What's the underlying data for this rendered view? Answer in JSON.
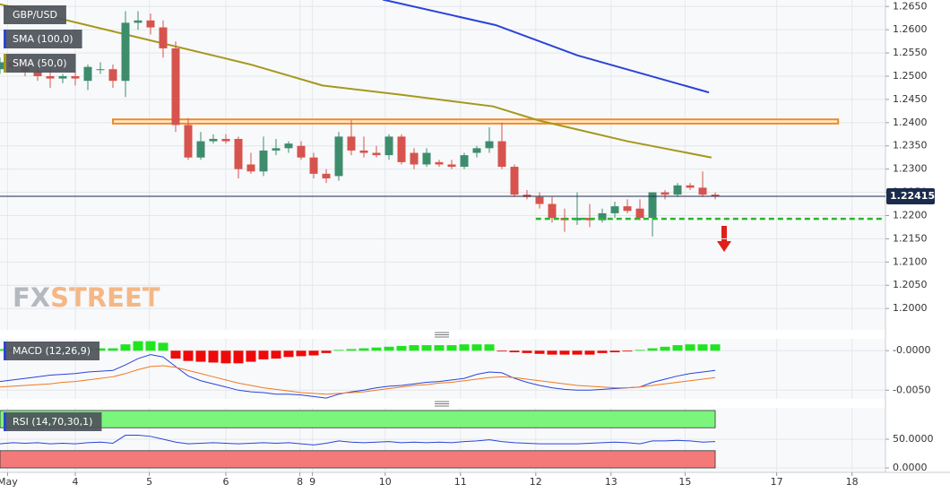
{
  "logo": [
    "FX",
    "STREET"
  ],
  "chart_data": [
    {
      "type": "candlestick",
      "title": "GBP/USD",
      "xlim": [
        0,
        70.57
      ],
      "ylim": [
        1.1954,
        1.2664
      ],
      "yticks": [
        {
          "value": 1.2,
          "label": "1.2000"
        },
        {
          "value": 1.205,
          "label": "1.2050"
        },
        {
          "value": 1.21,
          "label": "1.2100"
        },
        {
          "value": 1.215,
          "label": "1.2150"
        },
        {
          "value": 1.22,
          "label": "1.2200"
        },
        {
          "value": 1.225,
          "label": "1.2250"
        },
        {
          "value": 1.23,
          "label": "1.2300"
        },
        {
          "value": 1.235,
          "label": "1.2350"
        },
        {
          "value": 1.24,
          "label": "1.2400"
        },
        {
          "value": 1.245,
          "label": "1.2450"
        },
        {
          "value": 1.25,
          "label": "1.2500"
        },
        {
          "value": 1.255,
          "label": "1.2550"
        },
        {
          "value": 1.26,
          "label": "1.2600"
        },
        {
          "value": 1.265,
          "label": "1.2650"
        }
      ],
      "grid": true,
      "up_color": "#3d8d6d",
      "down_color": "#d6544d",
      "candles": {
        "open": [
          1.2515,
          1.253,
          1.252,
          1.251,
          1.25,
          1.2495,
          1.25,
          1.249,
          1.2515,
          1.2515,
          1.249,
          1.2615,
          1.262,
          1.2605,
          1.256,
          1.2395,
          1.2325,
          1.236,
          1.2365,
          1.2365,
          1.231,
          1.2295,
          1.234,
          1.2345,
          1.235,
          1.2325,
          1.229,
          1.2285,
          1.237,
          1.234,
          1.2335,
          1.233,
          1.237,
          1.2335,
          1.231,
          1.2315,
          1.231,
          1.2305,
          1.2335,
          1.2345,
          1.236,
          1.2305,
          1.2245,
          1.224,
          1.2225,
          1.2195,
          1.219,
          1.2195,
          1.219,
          1.2205,
          1.222,
          1.2215,
          1.2195,
          1.225,
          1.2245,
          1.2265,
          1.226,
          1.2245
        ],
        "high": [
          1.254,
          1.2545,
          1.254,
          1.2525,
          1.2515,
          1.2505,
          1.251,
          1.2525,
          1.253,
          1.2525,
          1.264,
          1.264,
          1.2635,
          1.262,
          1.2575,
          1.241,
          1.238,
          1.2375,
          1.2375,
          1.237,
          1.2335,
          1.237,
          1.2365,
          1.236,
          1.236,
          1.2335,
          1.23,
          1.238,
          1.2405,
          1.237,
          1.235,
          1.2375,
          1.2375,
          1.2345,
          1.2345,
          1.232,
          1.232,
          1.2335,
          1.235,
          1.239,
          1.24,
          1.231,
          1.2255,
          1.225,
          1.224,
          1.2215,
          1.225,
          1.2225,
          1.2215,
          1.223,
          1.2235,
          1.2235,
          1.225,
          1.2255,
          1.227,
          1.227,
          1.2295,
          1.225
        ],
        "low": [
          1.2505,
          1.2515,
          1.25,
          1.249,
          1.2475,
          1.2485,
          1.248,
          1.247,
          1.2505,
          1.2475,
          1.2455,
          1.26,
          1.259,
          1.254,
          1.238,
          1.232,
          1.232,
          1.2355,
          1.2355,
          1.228,
          1.229,
          1.2285,
          1.233,
          1.2335,
          1.232,
          1.228,
          1.227,
          1.2275,
          1.233,
          1.2325,
          1.2325,
          1.232,
          1.231,
          1.23,
          1.2305,
          1.2305,
          1.23,
          1.23,
          1.2325,
          1.2335,
          1.23,
          1.224,
          1.2235,
          1.2215,
          1.2185,
          1.2165,
          1.218,
          1.2175,
          1.2185,
          1.2195,
          1.2205,
          1.219,
          1.2155,
          1.2235,
          1.224,
          1.2255,
          1.224,
          1.2235
        ],
        "close": [
          1.253,
          1.252,
          1.251,
          1.25,
          1.2495,
          1.25,
          1.2495,
          1.252,
          1.2515,
          1.249,
          1.2615,
          1.262,
          1.2605,
          1.256,
          1.2395,
          1.2325,
          1.236,
          1.2365,
          1.236,
          1.23,
          1.2295,
          1.234,
          1.2345,
          1.2355,
          1.2325,
          1.229,
          1.228,
          1.237,
          1.234,
          1.2335,
          1.233,
          1.237,
          1.2315,
          1.231,
          1.2335,
          1.231,
          1.2305,
          1.233,
          1.2345,
          1.236,
          1.2305,
          1.2245,
          1.224,
          1.2225,
          1.2195,
          1.219,
          1.2195,
          1.219,
          1.2205,
          1.222,
          1.221,
          1.2195,
          1.225,
          1.2245,
          1.2265,
          1.226,
          1.2245,
          1.22415
        ]
      },
      "series": [
        {
          "name": "SMA (100,0)",
          "color": "#2a44d8",
          "x": [
            30.5,
            39.5,
            46,
            56.5
          ],
          "values": [
            1.2665,
            1.261,
            1.2545,
            1.2465
          ]
        },
        {
          "name": "SMA (50,0)",
          "color": "#a6981c",
          "x": [
            0,
            10,
            20,
            25.7,
            32,
            39.3,
            42.9,
            50,
            56.7
          ],
          "values": [
            1.2655,
            1.259,
            1.2525,
            1.248,
            1.246,
            1.2435,
            1.2405,
            1.236,
            1.2325
          ]
        }
      ],
      "resistance": {
        "x": [
          9,
          66.8
        ],
        "y": [
          1.2398,
          1.2407
        ],
        "color": "#f08a24"
      },
      "support": {
        "x": [
          42.7,
          70.4
        ],
        "y": 1.2193,
        "color": "#2fb52f"
      },
      "last_price": 1.22415
    },
    {
      "type": "macd",
      "title": "MACD (12,26,9)",
      "xlim": [
        0,
        70.57
      ],
      "ylim": [
        -0.0061,
        0.0015
      ],
      "yticks": [
        {
          "value": 0,
          "label": "-0.0000"
        },
        {
          "value": -0.005,
          "label": "-0.0050"
        }
      ],
      "histogram": {
        "up_color": "#1fe51f",
        "down_color": "#ee0a0a",
        "values": [
          0.0002,
          0.0002,
          0.0002,
          0.0002,
          0.0002,
          0.0002,
          0.0002,
          0.0003,
          0.0003,
          0.0003,
          0.0008,
          0.0012,
          0.0012,
          0.001,
          -0.001,
          -0.0013,
          -0.0014,
          -0.0015,
          -0.0016,
          -0.0016,
          -0.0014,
          -0.0011,
          -0.001,
          -0.0008,
          -0.0007,
          -0.0006,
          -0.0003,
          0.0001,
          0.0002,
          0.0003,
          0.0004,
          0.0005,
          0.0006,
          0.0007,
          0.0007,
          0.0007,
          0.0007,
          0.0008,
          0.0008,
          0.0008,
          -0.0001,
          -0.0002,
          -0.0003,
          -0.0004,
          -0.0005,
          -0.0005,
          -0.0005,
          -0.0005,
          -0.0003,
          -0.0002,
          -0.0001,
          0.0001,
          0.0003,
          0.0005,
          0.0007,
          0.0008,
          0.0008,
          0.0008
        ]
      },
      "lines": [
        {
          "color": "#2a44d8",
          "values": [
            -0.0039,
            -0.0037,
            -0.0035,
            -0.0033,
            -0.0031,
            -0.003,
            -0.0029,
            -0.0027,
            -0.0026,
            -0.0025,
            -0.0018,
            -0.001,
            -0.0005,
            -0.0008,
            -0.002,
            -0.0032,
            -0.0038,
            -0.0042,
            -0.0046,
            -0.005,
            -0.0052,
            -0.0053,
            -0.0055,
            -0.0055,
            -0.0056,
            -0.0058,
            -0.006,
            -0.0055,
            -0.0052,
            -0.005,
            -0.0047,
            -0.0045,
            -0.0044,
            -0.0042,
            -0.004,
            -0.0039,
            -0.0037,
            -0.0035,
            -0.003,
            -0.0027,
            -0.0028,
            -0.0035,
            -0.004,
            -0.0044,
            -0.0047,
            -0.0049,
            -0.005,
            -0.005,
            -0.0049,
            -0.0048,
            -0.0047,
            -0.0046,
            -0.004,
            -0.0036,
            -0.0032,
            -0.0029,
            -0.0027,
            -0.0025
          ]
        },
        {
          "color": "#f07a22",
          "values": [
            -0.0046,
            -0.0045,
            -0.0044,
            -0.0043,
            -0.0042,
            -0.004,
            -0.0039,
            -0.0037,
            -0.0035,
            -0.0033,
            -0.0029,
            -0.0024,
            -0.002,
            -0.0019,
            -0.0021,
            -0.0025,
            -0.0029,
            -0.0033,
            -0.0037,
            -0.0041,
            -0.0044,
            -0.0047,
            -0.0049,
            -0.0051,
            -0.0053,
            -0.0054,
            -0.0055,
            -0.0054,
            -0.0053,
            -0.0052,
            -0.005,
            -0.0048,
            -0.0046,
            -0.0044,
            -0.0043,
            -0.0041,
            -0.004,
            -0.0038,
            -0.0036,
            -0.0034,
            -0.0033,
            -0.0034,
            -0.0036,
            -0.0038,
            -0.004,
            -0.0042,
            -0.0044,
            -0.0045,
            -0.0046,
            -0.0047,
            -0.0047,
            -0.0046,
            -0.0044,
            -0.0042,
            -0.004,
            -0.0038,
            -0.0036,
            -0.0034
          ]
        }
      ]
    },
    {
      "type": "rsi",
      "title": "RSI (14,70,30,1)",
      "xlim": [
        0,
        70.57
      ],
      "ylim": [
        -7.8,
        104.7
      ],
      "yticks": [
        {
          "value": 50,
          "label": "50.0000"
        },
        {
          "value": 0,
          "label": "0.0000"
        }
      ],
      "bands": [
        {
          "from": 70,
          "to": 100,
          "color": "#7cf57c"
        },
        {
          "from": 0,
          "to": 30,
          "color": "#f47a7a"
        }
      ],
      "color": "#2a44d8",
      "values": [
        42,
        44,
        43,
        44,
        42,
        43,
        42,
        44,
        45,
        43,
        57,
        57,
        55,
        50,
        45,
        42,
        43,
        44,
        43,
        42,
        43,
        44,
        43,
        44,
        42,
        40,
        43,
        47,
        45,
        44,
        45,
        46,
        44,
        45,
        44,
        45,
        44,
        46,
        47,
        49,
        46,
        44,
        43,
        42,
        42,
        42,
        42,
        43,
        44,
        45,
        44,
        42,
        47,
        47,
        48,
        47,
        45,
        46
      ],
      "xticks": [
        {
          "value": 0.6,
          "label": "May"
        },
        {
          "value": 6,
          "label": "4"
        },
        {
          "value": 11.9,
          "label": "5"
        },
        {
          "value": 18,
          "label": "6"
        },
        {
          "value": 23.9,
          "label": "8"
        },
        {
          "value": 24.9,
          "label": "9"
        },
        {
          "value": 30.7,
          "label": "10"
        },
        {
          "value": 36.7,
          "label": "11"
        },
        {
          "value": 42.7,
          "label": "12"
        },
        {
          "value": 48.7,
          "label": "13"
        },
        {
          "value": 54.6,
          "label": "15"
        },
        {
          "value": 61.9,
          "label": "17"
        },
        {
          "value": 67.9,
          "label": "18"
        }
      ]
    }
  ]
}
